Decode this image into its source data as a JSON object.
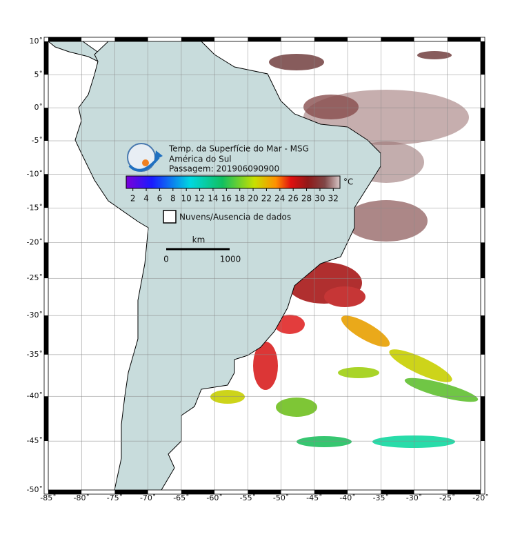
{
  "map": {
    "title": "Temp. da Superfície do Mar - MSG",
    "region": "América do Sul",
    "pass": "Passagem: 201906090900",
    "colorbar": {
      "unit": "°C",
      "range": [
        1,
        33
      ],
      "ticks": [
        2,
        4,
        6,
        8,
        10,
        12,
        14,
        16,
        18,
        20,
        22,
        24,
        26,
        28,
        30,
        32
      ]
    },
    "legend": "Nuvens/Ausencia de dados",
    "scale": {
      "unit": "km",
      "labels": [
        "0",
        "1000"
      ]
    },
    "lon_range": [
      -85,
      -20
    ],
    "lat_range": [
      10,
      -50
    ],
    "lon_ticks": [
      {
        "value": -85,
        "label": "-85˚"
      },
      {
        "value": -80,
        "label": "-80˚"
      },
      {
        "value": -75,
        "label": "-75˚"
      },
      {
        "value": -70,
        "label": "-70˚"
      },
      {
        "value": -65,
        "label": "-65˚"
      },
      {
        "value": -60,
        "label": "-60˚"
      },
      {
        "value": -55,
        "label": "-55˚"
      },
      {
        "value": -50,
        "label": "-50˚"
      },
      {
        "value": -45,
        "label": "-45˚"
      },
      {
        "value": -40,
        "label": "-40˚"
      },
      {
        "value": -35,
        "label": "-35˚"
      },
      {
        "value": -30,
        "label": "-30˚"
      },
      {
        "value": -25,
        "label": "-25˚"
      },
      {
        "value": -20,
        "label": "-20˚"
      }
    ],
    "lat_ticks": [
      {
        "value": 10,
        "label": "10˚"
      },
      {
        "value": 5,
        "label": "5˚"
      },
      {
        "value": 0,
        "label": "0˚"
      },
      {
        "value": -5,
        "label": "-5˚"
      },
      {
        "value": -10,
        "label": "-10˚"
      },
      {
        "value": -15,
        "label": "-15˚"
      },
      {
        "value": -20,
        "label": "-20˚"
      },
      {
        "value": -25,
        "label": "-25˚"
      },
      {
        "value": -30,
        "label": "-30˚"
      },
      {
        "value": -35,
        "label": "-35˚"
      },
      {
        "value": -40,
        "label": "-40˚"
      },
      {
        "value": -45,
        "label": "-45˚"
      },
      {
        "value": -50,
        "label": "-50˚"
      }
    ]
  }
}
